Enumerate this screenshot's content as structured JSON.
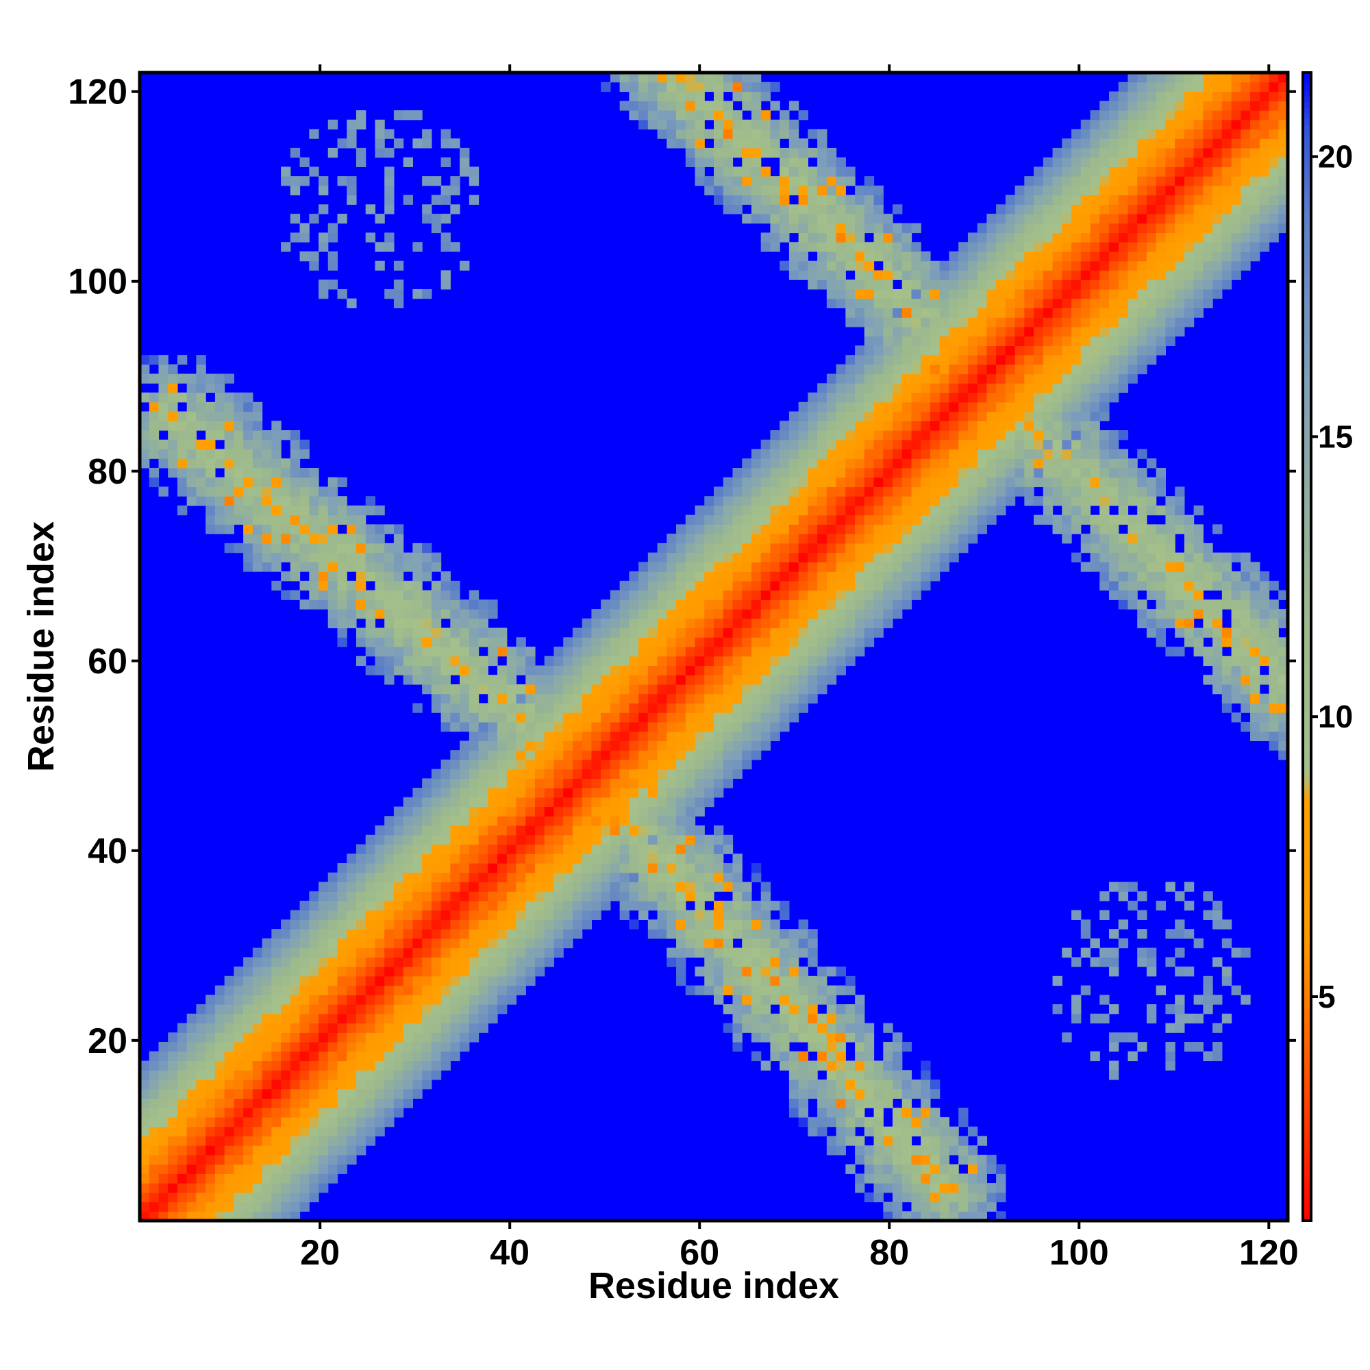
{
  "chart_data": {
    "type": "heatmap",
    "title": "",
    "xlabel": "Residue index",
    "ylabel": "Residue index",
    "xlim": [
      1,
      122
    ],
    "ylim": [
      1,
      122
    ],
    "x_ticks": [
      20,
      40,
      60,
      80,
      100,
      120
    ],
    "y_ticks": [
      20,
      40,
      60,
      80,
      100,
      120
    ],
    "matrix_size": 122,
    "grid": false,
    "legend": "colorbar right",
    "colorbar": {
      "range": [
        1,
        21.5
      ],
      "ticks": [
        5,
        10,
        15,
        20
      ],
      "color_stops": [
        {
          "value": 1,
          "color": "#ff0000"
        },
        {
          "value": 4,
          "color": "#ff6000"
        },
        {
          "value": 6,
          "color": "#ff9900"
        },
        {
          "value": 8.5,
          "color": "#ffa000"
        },
        {
          "value": 9,
          "color": "#a5c08a"
        },
        {
          "value": 12,
          "color": "#9cb98e"
        },
        {
          "value": 16,
          "color": "#7fa0b8"
        },
        {
          "value": 19,
          "color": "#5b7fc8"
        },
        {
          "value": 20.5,
          "color": "#3355dd"
        },
        {
          "value": 21.5,
          "color": "#0000ff"
        }
      ]
    },
    "features": {
      "diagonal": {
        "description": "main diagonal, distance increases away from i=j",
        "band_halfwidth": 16
      },
      "antiparallel_contacts": [
        {
          "from": [
            4,
            86
          ],
          "to": [
            46,
            50
          ],
          "value_center": 9.5,
          "width": 7
        },
        {
          "from": [
            50,
            46
          ],
          "to": [
            86,
            4
          ],
          "value_center": 9.5,
          "width": 7
        },
        {
          "from": [
            56,
            124
          ],
          "to": [
            90,
            90
          ],
          "value_center": 9.5,
          "width": 7
        },
        {
          "from": [
            90,
            90
          ],
          "to": [
            124,
            56
          ],
          "value_center": 9.5,
          "width": 7
        }
      ],
      "sparse_clusters": [
        {
          "center": [
            26,
            108
          ],
          "radius": 11,
          "value": 17
        },
        {
          "center": [
            108,
            26
          ],
          "radius": 11,
          "value": 17
        }
      ]
    }
  }
}
